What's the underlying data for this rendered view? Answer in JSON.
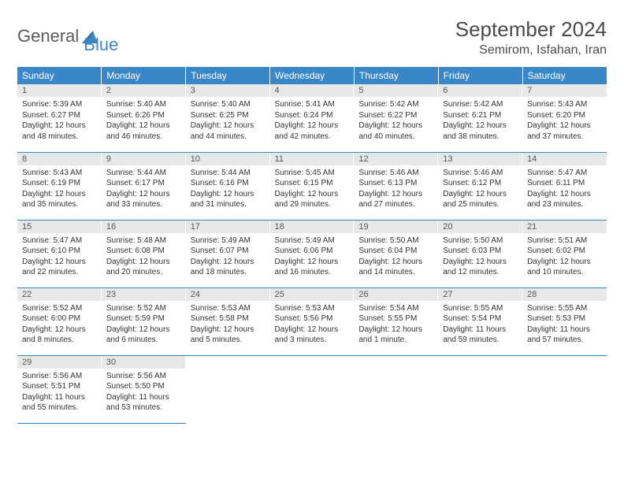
{
  "logo": {
    "word1": "General",
    "word2": "Blue"
  },
  "title": "September 2024",
  "location": "Semirom, Isfahan, Iran",
  "colors": {
    "header_bg": "#3a87c8",
    "header_text": "#ffffff",
    "daynum_bg": "#e8e8e8",
    "daynum_text": "#555555",
    "body_text": "#333333",
    "border": "#3a87c8",
    "page_bg": "#ffffff",
    "logo_gray": "#5a5a5a",
    "logo_blue": "#3a87c8"
  },
  "typography": {
    "title_fontsize": 26,
    "location_fontsize": 16,
    "dayheader_fontsize": 12,
    "daynum_fontsize": 11,
    "body_fontsize": 10
  },
  "day_headers": [
    "Sunday",
    "Monday",
    "Tuesday",
    "Wednesday",
    "Thursday",
    "Friday",
    "Saturday"
  ],
  "weeks": [
    [
      {
        "n": "1",
        "sr": "Sunrise: 5:39 AM",
        "ss": "Sunset: 6:27 PM",
        "d1": "Daylight: 12 hours",
        "d2": "and 48 minutes."
      },
      {
        "n": "2",
        "sr": "Sunrise: 5:40 AM",
        "ss": "Sunset: 6:26 PM",
        "d1": "Daylight: 12 hours",
        "d2": "and 46 minutes."
      },
      {
        "n": "3",
        "sr": "Sunrise: 5:40 AM",
        "ss": "Sunset: 6:25 PM",
        "d1": "Daylight: 12 hours",
        "d2": "and 44 minutes."
      },
      {
        "n": "4",
        "sr": "Sunrise: 5:41 AM",
        "ss": "Sunset: 6:24 PM",
        "d1": "Daylight: 12 hours",
        "d2": "and 42 minutes."
      },
      {
        "n": "5",
        "sr": "Sunrise: 5:42 AM",
        "ss": "Sunset: 6:22 PM",
        "d1": "Daylight: 12 hours",
        "d2": "and 40 minutes."
      },
      {
        "n": "6",
        "sr": "Sunrise: 5:42 AM",
        "ss": "Sunset: 6:21 PM",
        "d1": "Daylight: 12 hours",
        "d2": "and 38 minutes."
      },
      {
        "n": "7",
        "sr": "Sunrise: 5:43 AM",
        "ss": "Sunset: 6:20 PM",
        "d1": "Daylight: 12 hours",
        "d2": "and 37 minutes."
      }
    ],
    [
      {
        "n": "8",
        "sr": "Sunrise: 5:43 AM",
        "ss": "Sunset: 6:19 PM",
        "d1": "Daylight: 12 hours",
        "d2": "and 35 minutes."
      },
      {
        "n": "9",
        "sr": "Sunrise: 5:44 AM",
        "ss": "Sunset: 6:17 PM",
        "d1": "Daylight: 12 hours",
        "d2": "and 33 minutes."
      },
      {
        "n": "10",
        "sr": "Sunrise: 5:44 AM",
        "ss": "Sunset: 6:16 PM",
        "d1": "Daylight: 12 hours",
        "d2": "and 31 minutes."
      },
      {
        "n": "11",
        "sr": "Sunrise: 5:45 AM",
        "ss": "Sunset: 6:15 PM",
        "d1": "Daylight: 12 hours",
        "d2": "and 29 minutes."
      },
      {
        "n": "12",
        "sr": "Sunrise: 5:46 AM",
        "ss": "Sunset: 6:13 PM",
        "d1": "Daylight: 12 hours",
        "d2": "and 27 minutes."
      },
      {
        "n": "13",
        "sr": "Sunrise: 5:46 AM",
        "ss": "Sunset: 6:12 PM",
        "d1": "Daylight: 12 hours",
        "d2": "and 25 minutes."
      },
      {
        "n": "14",
        "sr": "Sunrise: 5:47 AM",
        "ss": "Sunset: 6:11 PM",
        "d1": "Daylight: 12 hours",
        "d2": "and 23 minutes."
      }
    ],
    [
      {
        "n": "15",
        "sr": "Sunrise: 5:47 AM",
        "ss": "Sunset: 6:10 PM",
        "d1": "Daylight: 12 hours",
        "d2": "and 22 minutes."
      },
      {
        "n": "16",
        "sr": "Sunrise: 5:48 AM",
        "ss": "Sunset: 6:08 PM",
        "d1": "Daylight: 12 hours",
        "d2": "and 20 minutes."
      },
      {
        "n": "17",
        "sr": "Sunrise: 5:49 AM",
        "ss": "Sunset: 6:07 PM",
        "d1": "Daylight: 12 hours",
        "d2": "and 18 minutes."
      },
      {
        "n": "18",
        "sr": "Sunrise: 5:49 AM",
        "ss": "Sunset: 6:06 PM",
        "d1": "Daylight: 12 hours",
        "d2": "and 16 minutes."
      },
      {
        "n": "19",
        "sr": "Sunrise: 5:50 AM",
        "ss": "Sunset: 6:04 PM",
        "d1": "Daylight: 12 hours",
        "d2": "and 14 minutes."
      },
      {
        "n": "20",
        "sr": "Sunrise: 5:50 AM",
        "ss": "Sunset: 6:03 PM",
        "d1": "Daylight: 12 hours",
        "d2": "and 12 minutes."
      },
      {
        "n": "21",
        "sr": "Sunrise: 5:51 AM",
        "ss": "Sunset: 6:02 PM",
        "d1": "Daylight: 12 hours",
        "d2": "and 10 minutes."
      }
    ],
    [
      {
        "n": "22",
        "sr": "Sunrise: 5:52 AM",
        "ss": "Sunset: 6:00 PM",
        "d1": "Daylight: 12 hours",
        "d2": "and 8 minutes."
      },
      {
        "n": "23",
        "sr": "Sunrise: 5:52 AM",
        "ss": "Sunset: 5:59 PM",
        "d1": "Daylight: 12 hours",
        "d2": "and 6 minutes."
      },
      {
        "n": "24",
        "sr": "Sunrise: 5:53 AM",
        "ss": "Sunset: 5:58 PM",
        "d1": "Daylight: 12 hours",
        "d2": "and 5 minutes."
      },
      {
        "n": "25",
        "sr": "Sunrise: 5:53 AM",
        "ss": "Sunset: 5:56 PM",
        "d1": "Daylight: 12 hours",
        "d2": "and 3 minutes."
      },
      {
        "n": "26",
        "sr": "Sunrise: 5:54 AM",
        "ss": "Sunset: 5:55 PM",
        "d1": "Daylight: 12 hours",
        "d2": "and 1 minute."
      },
      {
        "n": "27",
        "sr": "Sunrise: 5:55 AM",
        "ss": "Sunset: 5:54 PM",
        "d1": "Daylight: 11 hours",
        "d2": "and 59 minutes."
      },
      {
        "n": "28",
        "sr": "Sunrise: 5:55 AM",
        "ss": "Sunset: 5:53 PM",
        "d1": "Daylight: 11 hours",
        "d2": "and 57 minutes."
      }
    ],
    [
      {
        "n": "29",
        "sr": "Sunrise: 5:56 AM",
        "ss": "Sunset: 5:51 PM",
        "d1": "Daylight: 11 hours",
        "d2": "and 55 minutes."
      },
      {
        "n": "30",
        "sr": "Sunrise: 5:56 AM",
        "ss": "Sunset: 5:50 PM",
        "d1": "Daylight: 11 hours",
        "d2": "and 53 minutes."
      },
      null,
      null,
      null,
      null,
      null
    ]
  ]
}
